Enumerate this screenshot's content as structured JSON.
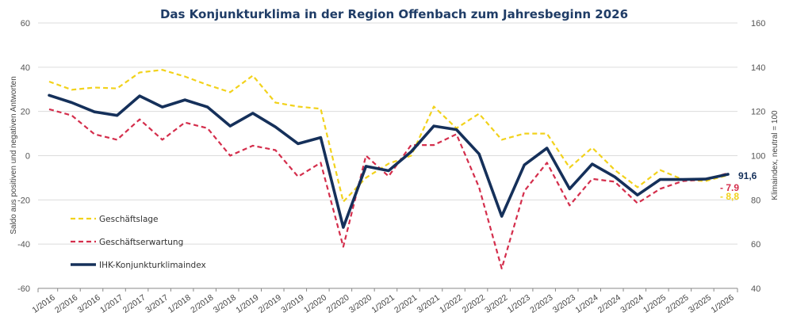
{
  "chart_data": {
    "type": "line",
    "title": "Das Konjunkturklima in der Region Offenbach zum Jahresbeginn 2026",
    "ylabel": "Saldo aus positiven und negativen Antworten",
    "y2label": "Klimaindex, neutral = 100",
    "ylim": [
      -60,
      60
    ],
    "y2lim": [
      40,
      160
    ],
    "yticks": [
      "60",
      "40",
      "20",
      "0",
      "-20",
      "-40",
      "-60"
    ],
    "y2ticks": [
      "160",
      "140",
      "120",
      "100",
      "80",
      "60",
      "40"
    ],
    "grid": true,
    "legend_position": "bottom-left",
    "categories": [
      "1/2016",
      "2/2016",
      "3/2016",
      "1/2017",
      "2/2017",
      "3/2017",
      "1/2018",
      "2/2018",
      "3/2018",
      "1/2019",
      "2/2019",
      "3/2019",
      "1/2020",
      "2/2020",
      "3/2020",
      "1/2021",
      "2/2021",
      "3/2021",
      "1/2022",
      "2/2022",
      "3/2022",
      "1/2023",
      "2/2023",
      "3/2023",
      "1/2024",
      "2/2024",
      "3/2024",
      "1/2025",
      "2/2025",
      "3/2025",
      "1/2026"
    ],
    "series": [
      {
        "name": "Geschäftslage",
        "axis": "left",
        "color": "#f2d21b",
        "style": "dashed",
        "values": [
          33.5,
          29.8,
          30.8,
          30.4,
          37.6,
          38.8,
          35.8,
          32.0,
          28.7,
          36.2,
          24.0,
          22.2,
          21.2,
          -20.8,
          -10.0,
          -3.6,
          0.0,
          22.2,
          12.4,
          19.0,
          7.2,
          10.0,
          10.0,
          -5.4,
          3.6,
          -6.5,
          -14.3,
          -6.5,
          -10.8,
          -11.5,
          -8.8
        ]
      },
      {
        "name": "Geschäftserwartung",
        "axis": "left",
        "color": "#d42e4c",
        "style": "dashed",
        "values": [
          21.0,
          18.2,
          9.7,
          7.2,
          16.4,
          7.2,
          15.0,
          12.4,
          0.0,
          4.5,
          2.5,
          -9.5,
          -3.2,
          -41.2,
          0.0,
          -9.3,
          4.8,
          4.8,
          9.7,
          -14.3,
          -51.0,
          -16.0,
          -3.2,
          -22.5,
          -10.5,
          -11.8,
          -21.5,
          -15.0,
          -11.5,
          -10.8,
          -7.9
        ]
      },
      {
        "name": "IHK-Konjunkturklimaindex",
        "axis": "right",
        "color": "#15305a",
        "style": "solid",
        "values": [
          127.3,
          124.0,
          119.8,
          118.2,
          127.0,
          122.0,
          125.2,
          122.0,
          113.4,
          119.2,
          113.0,
          105.4,
          108.2,
          67.6,
          95.2,
          93.2,
          101.8,
          113.4,
          111.8,
          100.8,
          72.6,
          95.8,
          103.4,
          85.0,
          96.2,
          90.4,
          82.2,
          89.2,
          89.2,
          89.4,
          91.6
        ]
      }
    ],
    "end_labels": {
      "index": "91,6",
      "erwartung": "- 7.9",
      "lage": "- 8,8"
    }
  }
}
